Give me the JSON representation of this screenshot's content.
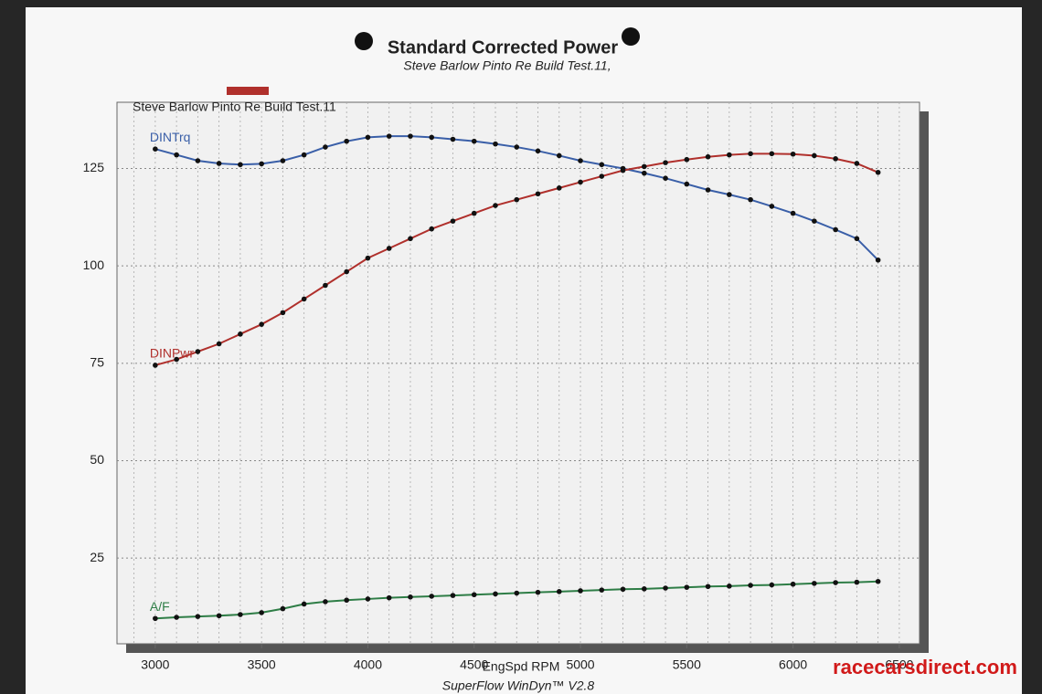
{
  "chart_data": {
    "type": "line",
    "title": "Standard Corrected Power",
    "subtitle": "Steve Barlow Pinto Re Build Test.11,",
    "run_label": "Steve Barlow Pinto Re Build Test.11",
    "x_label": "EngSpd  RPM",
    "footer": "SuperFlow WinDyn™ V2.8",
    "watermark": "racecarsdirect.com",
    "x": [
      3000,
      3100,
      3200,
      3300,
      3400,
      3500,
      3600,
      3700,
      3800,
      3900,
      4000,
      4100,
      4200,
      4300,
      4400,
      4500,
      4600,
      4700,
      4800,
      4900,
      5000,
      5100,
      5200,
      5300,
      5400,
      5500,
      5600,
      5700,
      5800,
      5900,
      6000,
      6100,
      6200,
      6300,
      6400
    ],
    "series": [
      {
        "name": "DINTrq",
        "color": "#3a5fa8",
        "values": [
          130,
          128.5,
          127,
          126.3,
          126,
          126.2,
          127,
          128.5,
          130.5,
          132,
          133,
          133.3,
          133.3,
          133,
          132.5,
          132,
          131.3,
          130.5,
          129.5,
          128.3,
          127,
          126,
          125,
          123.8,
          122.5,
          121,
          119.5,
          118.3,
          117,
          115.3,
          113.5,
          111.5,
          109.3,
          107,
          101.5
        ]
      },
      {
        "name": "DINPwr",
        "color": "#b0302c",
        "values": [
          74.5,
          76,
          78,
          80,
          82.5,
          85,
          88,
          91.5,
          95,
          98.5,
          102,
          104.5,
          107,
          109.5,
          111.5,
          113.5,
          115.5,
          117,
          118.5,
          120,
          121.5,
          123,
          124.5,
          125.5,
          126.5,
          127.3,
          128,
          128.5,
          128.8,
          128.8,
          128.7,
          128.3,
          127.5,
          126.3,
          124
        ]
      },
      {
        "name": "A/F",
        "color": "#2e7d46",
        "values": [
          9.5,
          9.8,
          10,
          10.2,
          10.5,
          11,
          12,
          13.2,
          13.8,
          14.2,
          14.5,
          14.8,
          15,
          15.2,
          15.4,
          15.6,
          15.8,
          16,
          16.2,
          16.4,
          16.6,
          16.8,
          17,
          17.1,
          17.3,
          17.5,
          17.7,
          17.8,
          18,
          18.1,
          18.3,
          18.5,
          18.7,
          18.8,
          19
        ]
      }
    ],
    "xlim": [
      2820,
      6595
    ],
    "xticks": [
      3000,
      3500,
      4000,
      4500,
      5000,
      5500,
      6000,
      6500
    ],
    "ylim": [
      3,
      142
    ],
    "yticks": [
      25,
      50,
      75,
      100,
      125
    ],
    "grid": true,
    "minor_grid_step": 100
  }
}
